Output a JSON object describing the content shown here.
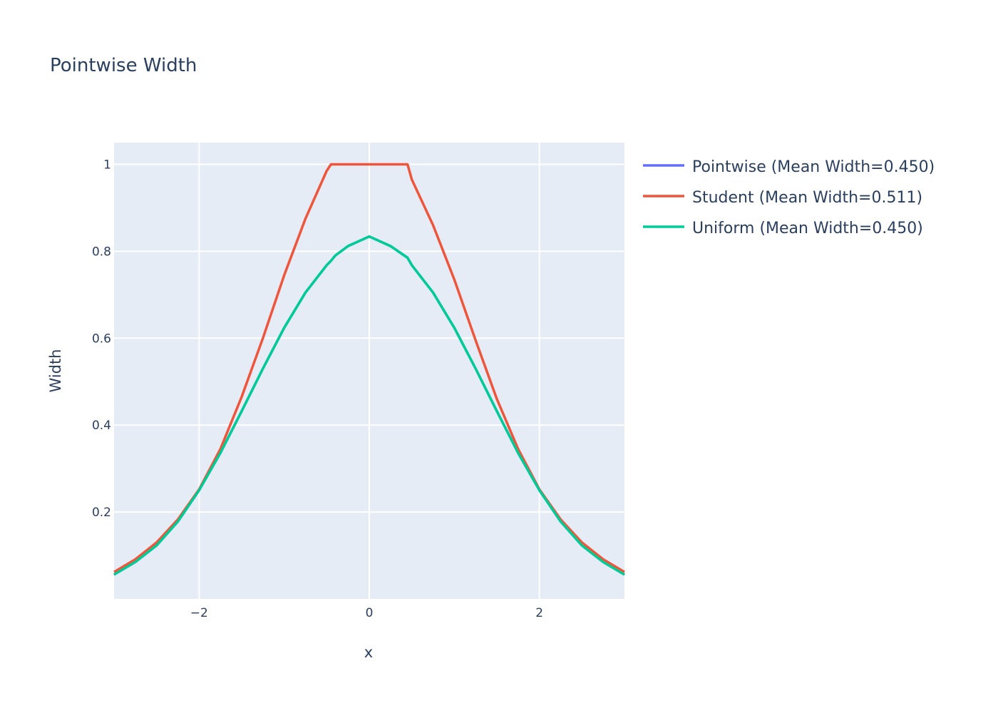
{
  "chart_data": {
    "type": "line",
    "title": "Pointwise Width",
    "xlabel": "x",
    "ylabel": "Width",
    "xlim": [
      -3,
      3
    ],
    "ylim": [
      0,
      1.05
    ],
    "xticks": [
      -2,
      0,
      2
    ],
    "xtick_labels": [
      "−2",
      "0",
      "2"
    ],
    "yticks": [
      0.2,
      0.4,
      0.6,
      0.8,
      1
    ],
    "ytick_labels": [
      "0.2",
      "0.4",
      "0.6",
      "0.8",
      "1"
    ],
    "grid": true,
    "legend_position": "top-right, outside plot",
    "background_color": "#e5ecf6",
    "x": [
      -3,
      -2.75,
      -2.5,
      -2.25,
      -2,
      -1.75,
      -1.5,
      -1.25,
      -1,
      -0.75,
      -0.5,
      -0.45,
      -0.4,
      -0.25,
      0,
      0.25,
      0.45,
      0.5,
      0.75,
      1,
      1.25,
      1.5,
      1.75,
      2,
      2.25,
      2.5,
      2.75,
      3
    ],
    "series": [
      {
        "name": "Pointwise (Mean Width=0.450)",
        "color": "#636efa",
        "values": [
          0.056,
          0.085,
          0.123,
          0.178,
          0.25,
          0.336,
          0.432,
          0.53,
          0.624,
          0.705,
          0.768,
          0.778,
          0.79,
          0.812,
          0.834,
          0.812,
          0.785,
          0.768,
          0.705,
          0.624,
          0.53,
          0.432,
          0.336,
          0.25,
          0.178,
          0.123,
          0.085,
          0.056
        ]
      },
      {
        "name": "Student (Mean Width=0.511)",
        "color": "#ef553b",
        "values": [
          0.062,
          0.091,
          0.13,
          0.183,
          0.252,
          0.345,
          0.465,
          0.6,
          0.745,
          0.875,
          0.985,
          1.0,
          1.0,
          1.0,
          1.0,
          1.0,
          1.0,
          0.965,
          0.86,
          0.735,
          0.595,
          0.46,
          0.345,
          0.252,
          0.183,
          0.13,
          0.091,
          0.062
        ]
      },
      {
        "name": "Uniform (Mean Width=0.450)",
        "color": "#00cc96",
        "values": [
          0.056,
          0.085,
          0.123,
          0.178,
          0.25,
          0.336,
          0.432,
          0.53,
          0.624,
          0.705,
          0.768,
          0.778,
          0.79,
          0.812,
          0.834,
          0.812,
          0.785,
          0.768,
          0.705,
          0.624,
          0.53,
          0.432,
          0.336,
          0.25,
          0.178,
          0.123,
          0.085,
          0.056
        ]
      }
    ]
  }
}
